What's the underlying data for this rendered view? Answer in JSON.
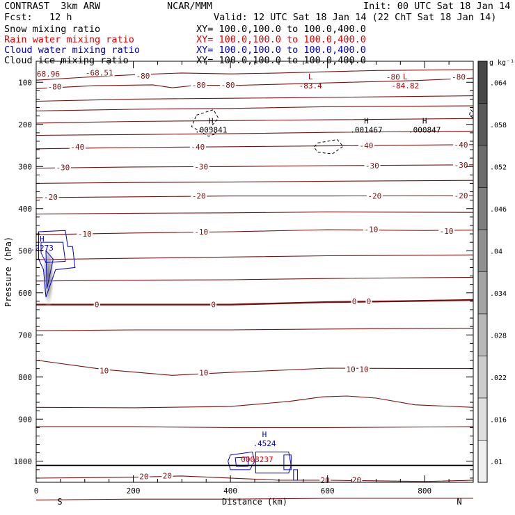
{
  "header": {
    "left_line1": "CONTRAST  3km ARW",
    "left_line2": "Fcst:   12 h",
    "center": "NCAR/MMM",
    "init": "Init: 00 UTC Sat 18 Jan 14",
    "valid": "Valid: 12 UTC Sat 18 Jan 14 (22 ChT Sat 18 Jan 14)"
  },
  "legend": [
    {
      "label": "Snow mixing ratio",
      "xy": "XY= 100.0,100.0 to 100.0,400.0",
      "color": "#000000"
    },
    {
      "label": "Rain water mixing ratio",
      "xy": "XY= 100.0,100.0 to 100.0,400.0",
      "color": "#e00000"
    },
    {
      "label": "Cloud water mixing ratio",
      "xy": "XY= 100.0,100.0 to 100.0,400.0",
      "color": "#0000cc"
    },
    {
      "label": "Cloud ice mixing ratio",
      "xy": "XY= 100.0,100.0 to 100.0,400.0",
      "color": "#000000"
    }
  ],
  "colorbar": {
    "unit": "g kg⁻¹",
    "ticks": [
      ".064",
      ".058",
      ".052",
      ".046",
      ".04",
      ".034",
      ".028",
      ".022",
      ".016",
      ".01"
    ],
    "shades": [
      "#484848",
      "#5a5a5a",
      "#6c6c6c",
      "#7e7e7e",
      "#909090",
      "#a4a4a4",
      "#b8b8b8",
      "#cccccc",
      "#dedede",
      "#efefef"
    ]
  },
  "chart_data": {
    "type": "contour",
    "xlabel": "Distance (km)",
    "ylabel": "Pressure (hPa)",
    "xlim": [
      0,
      900
    ],
    "ylim": [
      1050,
      50
    ],
    "x_ticks": [
      "0",
      "200",
      "400",
      "600",
      "800"
    ],
    "y_ticks": [
      "100",
      "200",
      "300",
      "400",
      "500",
      "600",
      "700",
      "800",
      "900",
      "1000"
    ],
    "end_labels": {
      "left": "S",
      "right": "N"
    },
    "contour_color": "#7a1010",
    "isotherm_labels": [
      {
        "text": "68.96",
        "x": 25,
        "p": 80
      },
      {
        "text": "-68.51",
        "x": 130,
        "p": 77
      },
      {
        "text": "-80",
        "x": 220,
        "p": 85
      },
      {
        "text": "-80",
        "x": 38,
        "p": 110
      },
      {
        "text": "-80",
        "x": 335,
        "p": 106
      },
      {
        "text": "-80",
        "x": 395,
        "p": 106
      },
      {
        "text": "-80",
        "x": 735,
        "p": 87
      },
      {
        "text": "-80",
        "x": 870,
        "p": 87
      },
      {
        "text": "-40",
        "x": 85,
        "p": 253
      },
      {
        "text": "-40",
        "x": 333,
        "p": 253
      },
      {
        "text": "-40",
        "x": 680,
        "p": 250
      },
      {
        "text": "-40",
        "x": 875,
        "p": 248
      },
      {
        "text": "-30",
        "x": 55,
        "p": 302
      },
      {
        "text": "-30",
        "x": 340,
        "p": 300
      },
      {
        "text": "-30",
        "x": 692,
        "p": 298
      },
      {
        "text": "-30",
        "x": 875,
        "p": 296
      },
      {
        "text": "-20",
        "x": 30,
        "p": 372
      },
      {
        "text": "-20",
        "x": 335,
        "p": 370
      },
      {
        "text": "-20",
        "x": 697,
        "p": 370
      },
      {
        "text": "-20",
        "x": 875,
        "p": 369
      },
      {
        "text": "-10",
        "x": 100,
        "p": 460
      },
      {
        "text": "-10",
        "x": 340,
        "p": 455
      },
      {
        "text": "-10",
        "x": 690,
        "p": 449
      },
      {
        "text": "-10",
        "x": 845,
        "p": 453
      },
      {
        "text": "0",
        "x": 125,
        "p": 628
      },
      {
        "text": "0",
        "x": 365,
        "p": 628
      },
      {
        "text": "0",
        "x": 655,
        "p": 620
      },
      {
        "text": "0",
        "x": 685,
        "p": 620
      },
      {
        "text": "10",
        "x": 140,
        "p": 785
      },
      {
        "text": "10",
        "x": 345,
        "p": 790
      },
      {
        "text": "10",
        "x": 648,
        "p": 781
      },
      {
        "text": "10",
        "x": 675,
        "p": 781
      },
      {
        "text": "20",
        "x": 222,
        "p": 1036
      },
      {
        "text": "20",
        "x": 270,
        "p": 1034
      },
      {
        "text": "20",
        "x": 595,
        "p": 1045
      },
      {
        "text": "20",
        "x": 660,
        "p": 1044
      }
    ],
    "extrema": [
      {
        "mark": "L",
        "value": "-83.4",
        "x": 565,
        "p": 113,
        "color": "#b00000"
      },
      {
        "mark": "L",
        "value": "-84.82",
        "x": 760,
        "p": 113,
        "color": "#b00000"
      },
      {
        "mark": "H",
        "value": ".005841",
        "x": 360,
        "p": 218,
        "color": "#000000"
      },
      {
        "mark": "H",
        "value": ".001467",
        "x": 680,
        "p": 218,
        "color": "#000000"
      },
      {
        "mark": "H",
        "value": ".000847",
        "x": 800,
        "p": 218,
        "color": "#000000"
      },
      {
        "mark": "H",
        "value": ".2273",
        "x": 12,
        "p": 498,
        "color": "#0000cc"
      },
      {
        "mark": "H",
        "value": ".4524",
        "x": 470,
        "p": 962,
        "color": "#0000cc"
      },
      {
        "mark": "",
        "value": "0008237",
        "x": 455,
        "p": 1000,
        "color": "#e00000"
      }
    ]
  }
}
